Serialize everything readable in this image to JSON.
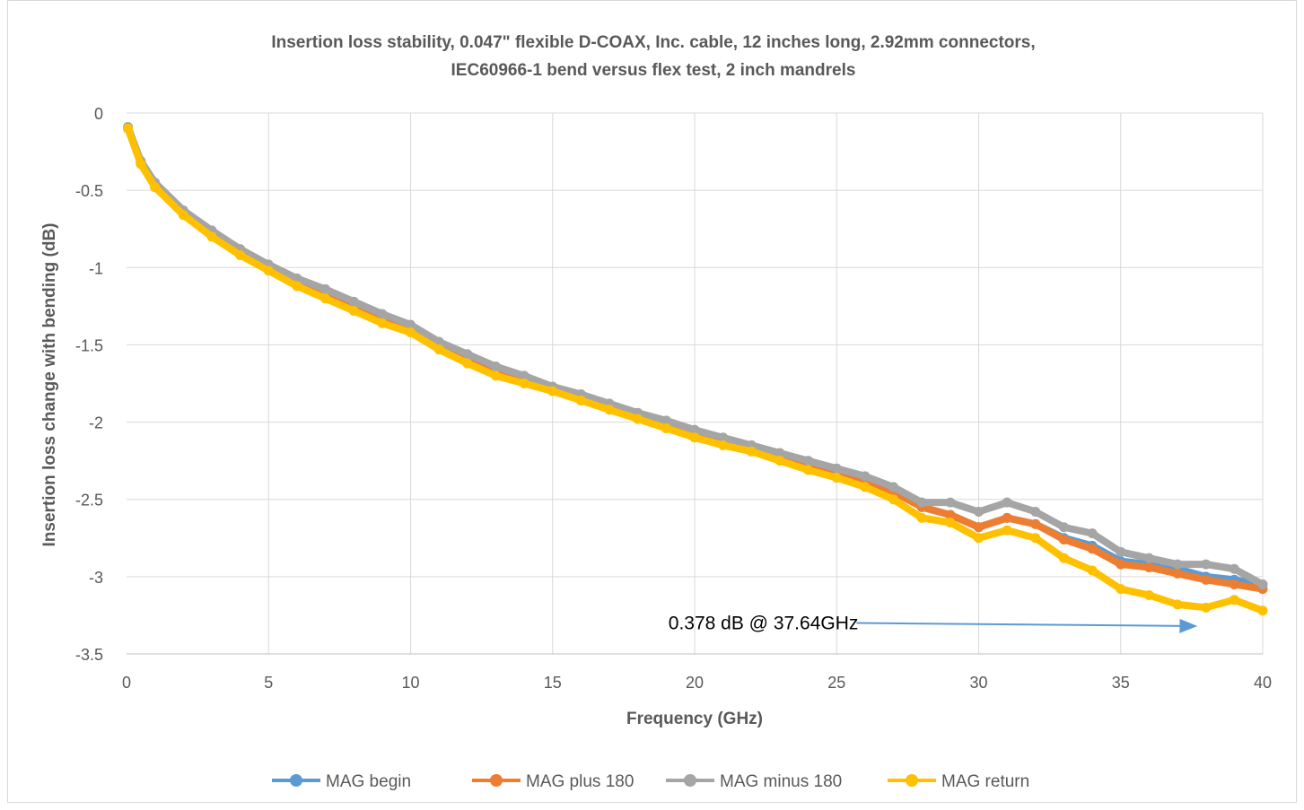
{
  "chart_data": {
    "type": "line",
    "title": "Insertion loss stability, 0.047\" flexible D-COAX, Inc. cable, 12 inches long, 2.92mm connectors,",
    "subtitle": "IEC60966-1 bend versus flex test, 2 inch mandrels",
    "xlabel": "Frequency (GHz)",
    "ylabel": "Insertion loss change with bending (dB)",
    "xlim": [
      0,
      40
    ],
    "ylim": [
      -3.5,
      0
    ],
    "xticks": [
      "0",
      "5",
      "10",
      "15",
      "20",
      "25",
      "30",
      "35",
      "40"
    ],
    "yticks": [
      "0",
      "-0.5",
      "-1",
      "-1.5",
      "-2",
      "-2.5",
      "-3",
      "-3.5"
    ],
    "grid": true,
    "legend_position": "bottom",
    "series": [
      {
        "name": "MAG begin",
        "color": "#5b9bd5",
        "x": [
          0.05,
          0.5,
          1,
          2,
          3,
          4,
          5,
          6,
          7,
          8,
          9,
          10,
          11,
          12,
          13,
          14,
          15,
          16,
          17,
          18,
          19,
          20,
          21,
          22,
          23,
          24,
          25,
          26,
          27,
          28,
          29,
          30,
          31,
          32,
          33,
          34,
          35,
          36,
          37,
          38,
          39,
          40
        ],
        "y": [
          -0.1,
          -0.32,
          -0.46,
          -0.64,
          -0.78,
          -0.9,
          -1.0,
          -1.1,
          -1.17,
          -1.25,
          -1.32,
          -1.39,
          -1.5,
          -1.58,
          -1.66,
          -1.72,
          -1.78,
          -1.84,
          -1.9,
          -1.96,
          -2.01,
          -2.07,
          -2.12,
          -2.16,
          -2.22,
          -2.28,
          -2.33,
          -2.38,
          -2.45,
          -2.55,
          -2.6,
          -2.68,
          -2.62,
          -2.66,
          -2.75,
          -2.8,
          -2.9,
          -2.92,
          -2.95,
          -3.0,
          -3.02,
          -3.05
        ]
      },
      {
        "name": "MAG plus 180",
        "color": "#ed7d31",
        "x": [
          0.05,
          0.5,
          1,
          2,
          3,
          4,
          5,
          6,
          7,
          8,
          9,
          10,
          11,
          12,
          13,
          14,
          15,
          16,
          17,
          18,
          19,
          20,
          21,
          22,
          23,
          24,
          25,
          26,
          27,
          28,
          29,
          30,
          31,
          32,
          33,
          34,
          35,
          36,
          37,
          38,
          39,
          40
        ],
        "y": [
          -0.1,
          -0.32,
          -0.46,
          -0.64,
          -0.78,
          -0.9,
          -1.0,
          -1.1,
          -1.17,
          -1.25,
          -1.32,
          -1.39,
          -1.5,
          -1.58,
          -1.66,
          -1.72,
          -1.78,
          -1.84,
          -1.9,
          -1.96,
          -2.01,
          -2.07,
          -2.12,
          -2.16,
          -2.22,
          -2.28,
          -2.33,
          -2.38,
          -2.45,
          -2.55,
          -2.6,
          -2.68,
          -2.62,
          -2.66,
          -2.76,
          -2.82,
          -2.92,
          -2.94,
          -2.98,
          -3.02,
          -3.05,
          -3.08
        ]
      },
      {
        "name": "MAG minus 180",
        "color": "#a5a5a5",
        "x": [
          0.05,
          0.5,
          1,
          2,
          3,
          4,
          5,
          6,
          7,
          8,
          9,
          10,
          11,
          12,
          13,
          14,
          15,
          16,
          17,
          18,
          19,
          20,
          21,
          22,
          23,
          24,
          25,
          26,
          27,
          28,
          29,
          30,
          31,
          32,
          33,
          34,
          35,
          36,
          37,
          38,
          39,
          40
        ],
        "y": [
          -0.09,
          -0.31,
          -0.45,
          -0.63,
          -0.76,
          -0.88,
          -0.98,
          -1.07,
          -1.14,
          -1.22,
          -1.3,
          -1.37,
          -1.48,
          -1.56,
          -1.64,
          -1.7,
          -1.77,
          -1.82,
          -1.88,
          -1.94,
          -1.99,
          -2.05,
          -2.1,
          -2.15,
          -2.2,
          -2.25,
          -2.3,
          -2.35,
          -2.42,
          -2.52,
          -2.52,
          -2.58,
          -2.52,
          -2.58,
          -2.68,
          -2.72,
          -2.84,
          -2.88,
          -2.92,
          -2.92,
          -2.95,
          -3.05
        ]
      },
      {
        "name": "MAG return",
        "color": "#ffc000",
        "x": [
          0.05,
          0.5,
          1,
          2,
          3,
          4,
          5,
          6,
          7,
          8,
          9,
          10,
          11,
          12,
          13,
          14,
          15,
          16,
          17,
          18,
          19,
          20,
          21,
          22,
          23,
          24,
          25,
          26,
          27,
          28,
          29,
          30,
          31,
          32,
          33,
          34,
          35,
          36,
          37,
          38,
          39,
          40
        ],
        "y": [
          -0.1,
          -0.33,
          -0.48,
          -0.66,
          -0.8,
          -0.92,
          -1.02,
          -1.12,
          -1.2,
          -1.28,
          -1.36,
          -1.42,
          -1.53,
          -1.62,
          -1.7,
          -1.75,
          -1.8,
          -1.86,
          -1.92,
          -1.98,
          -2.04,
          -2.1,
          -2.15,
          -2.19,
          -2.25,
          -2.31,
          -2.36,
          -2.42,
          -2.5,
          -2.62,
          -2.65,
          -2.75,
          -2.7,
          -2.75,
          -2.88,
          -2.96,
          -3.08,
          -3.12,
          -3.18,
          -3.2,
          -3.15,
          -3.22
        ]
      }
    ],
    "annotation": {
      "text": "0.378 dB @ 37.64GHz",
      "arrow_from": [
        25.7,
        -3.3
      ],
      "arrow_to": [
        37.64,
        -3.32
      ]
    }
  }
}
